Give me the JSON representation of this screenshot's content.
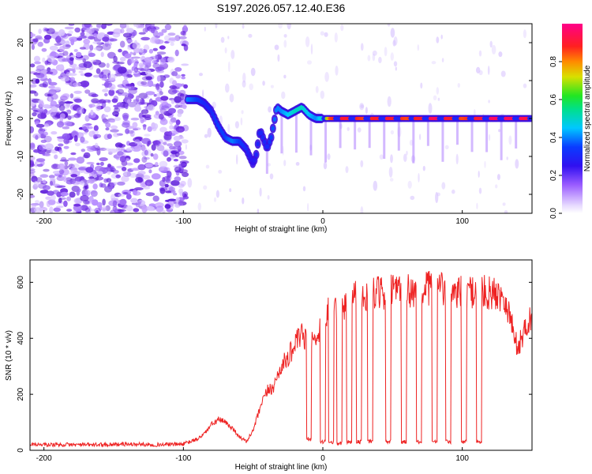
{
  "title": "S197.2026.057.12.40.E36",
  "colors": {
    "snr_line": "#ee2222",
    "spectro_low": "#c9a6ff",
    "spectro_mid": "#5a18e8",
    "spectro_high": "#ff0080"
  },
  "chart_data": [
    {
      "type": "heatmap",
      "name": "spectrogram",
      "xlabel": "Height of straight line (km)",
      "ylabel": "Frequency (Hz)",
      "xlim": [
        -210,
        150
      ],
      "ylim": [
        -25,
        25
      ],
      "xticks": [
        -200,
        -100,
        0,
        100
      ],
      "xtick_labels": [
        "-200",
        "-100",
        "0",
        "100"
      ],
      "yticks": [
        -20,
        -10,
        0,
        10,
        20
      ],
      "ytick_labels": [
        "-20",
        "-10",
        "0",
        "10",
        "20"
      ],
      "ridge": {
        "x": [
          -97,
          -90,
          -85,
          -80,
          -75,
          -70,
          -65,
          -60,
          -55,
          -50,
          -48,
          -45,
          -40,
          -37,
          -33,
          -30,
          -25,
          -20,
          -15,
          -10,
          -5,
          0,
          5,
          10,
          20,
          30,
          40,
          50,
          60,
          70,
          80,
          90,
          100,
          110,
          120,
          130,
          140,
          150
        ],
        "y": [
          5,
          5,
          4,
          2,
          -2,
          -5,
          -6,
          -6,
          -8,
          -12,
          -10,
          -3,
          -8,
          -5,
          3,
          2,
          1,
          2,
          3,
          1,
          0,
          0,
          0,
          0,
          0,
          0,
          0,
          0,
          0,
          0,
          0,
          0,
          0,
          0,
          0,
          0,
          0,
          0
        ],
        "amplitude": [
          0.4,
          0.35,
          0.3,
          0.3,
          0.35,
          0.35,
          0.4,
          0.35,
          0.3,
          0.25,
          0.3,
          0.3,
          0.3,
          0.35,
          0.4,
          0.4,
          0.45,
          0.5,
          0.5,
          0.45,
          0.4,
          0.5,
          0.85,
          0.9,
          0.9,
          0.85,
          0.9,
          0.9,
          0.85,
          0.9,
          0.95,
          0.9,
          0.85,
          0.9,
          0.95,
          0.95,
          0.95,
          0.9
        ]
      }
    },
    {
      "type": "colorbar",
      "name": "amplitude-colorbar",
      "label": "Normalized spectral amplitude",
      "range": [
        0,
        1
      ],
      "ticks": [
        0,
        0.2,
        0.4,
        0.6,
        0.8
      ],
      "tick_labels": [
        "0.0",
        "0.2",
        "0.4",
        "0.6",
        "0.8"
      ]
    },
    {
      "type": "line",
      "name": "snr",
      "xlabel": "Height of straight line (km)",
      "ylabel": "SNR (10 * v/v)",
      "xlim": [
        -210,
        150
      ],
      "ylim": [
        0,
        680
      ],
      "xticks": [
        -200,
        -100,
        0,
        100
      ],
      "xtick_labels": [
        "-200",
        "-100",
        "0",
        "100"
      ],
      "yticks": [
        0,
        200,
        400,
        600
      ],
      "ytick_labels": [
        "0",
        "200",
        "400",
        "600"
      ],
      "series": [
        {
          "name": "SNR",
          "x": [
            -210,
            -200,
            -180,
            -160,
            -140,
            -120,
            -100,
            -90,
            -85,
            -80,
            -75,
            -70,
            -65,
            -60,
            -55,
            -50,
            -45,
            -40,
            -35,
            -30,
            -25,
            -20,
            -15,
            -10,
            -5,
            0,
            5,
            10,
            15,
            20,
            30,
            40,
            50,
            60,
            70,
            80,
            90,
            100,
            110,
            120,
            130,
            135,
            140,
            145,
            150
          ],
          "y": [
            22,
            20,
            20,
            20,
            22,
            20,
            22,
            40,
            60,
            90,
            110,
            100,
            80,
            50,
            30,
            70,
            150,
            210,
            230,
            300,
            330,
            380,
            410,
            380,
            400,
            470,
            500,
            510,
            500,
            560,
            555,
            560,
            570,
            570,
            575,
            580,
            570,
            565,
            570,
            560,
            555,
            460,
            360,
            440,
            480
          ]
        }
      ],
      "dropouts": {
        "centers": [
          -10,
          0,
          6,
          12,
          19,
          26,
          34,
          47,
          58,
          69,
          80,
          90,
          101,
          112
        ],
        "floor": [
          40,
          30,
          30,
          25,
          30,
          30,
          30,
          30,
          30,
          30,
          30,
          30,
          30,
          30
        ]
      }
    }
  ]
}
